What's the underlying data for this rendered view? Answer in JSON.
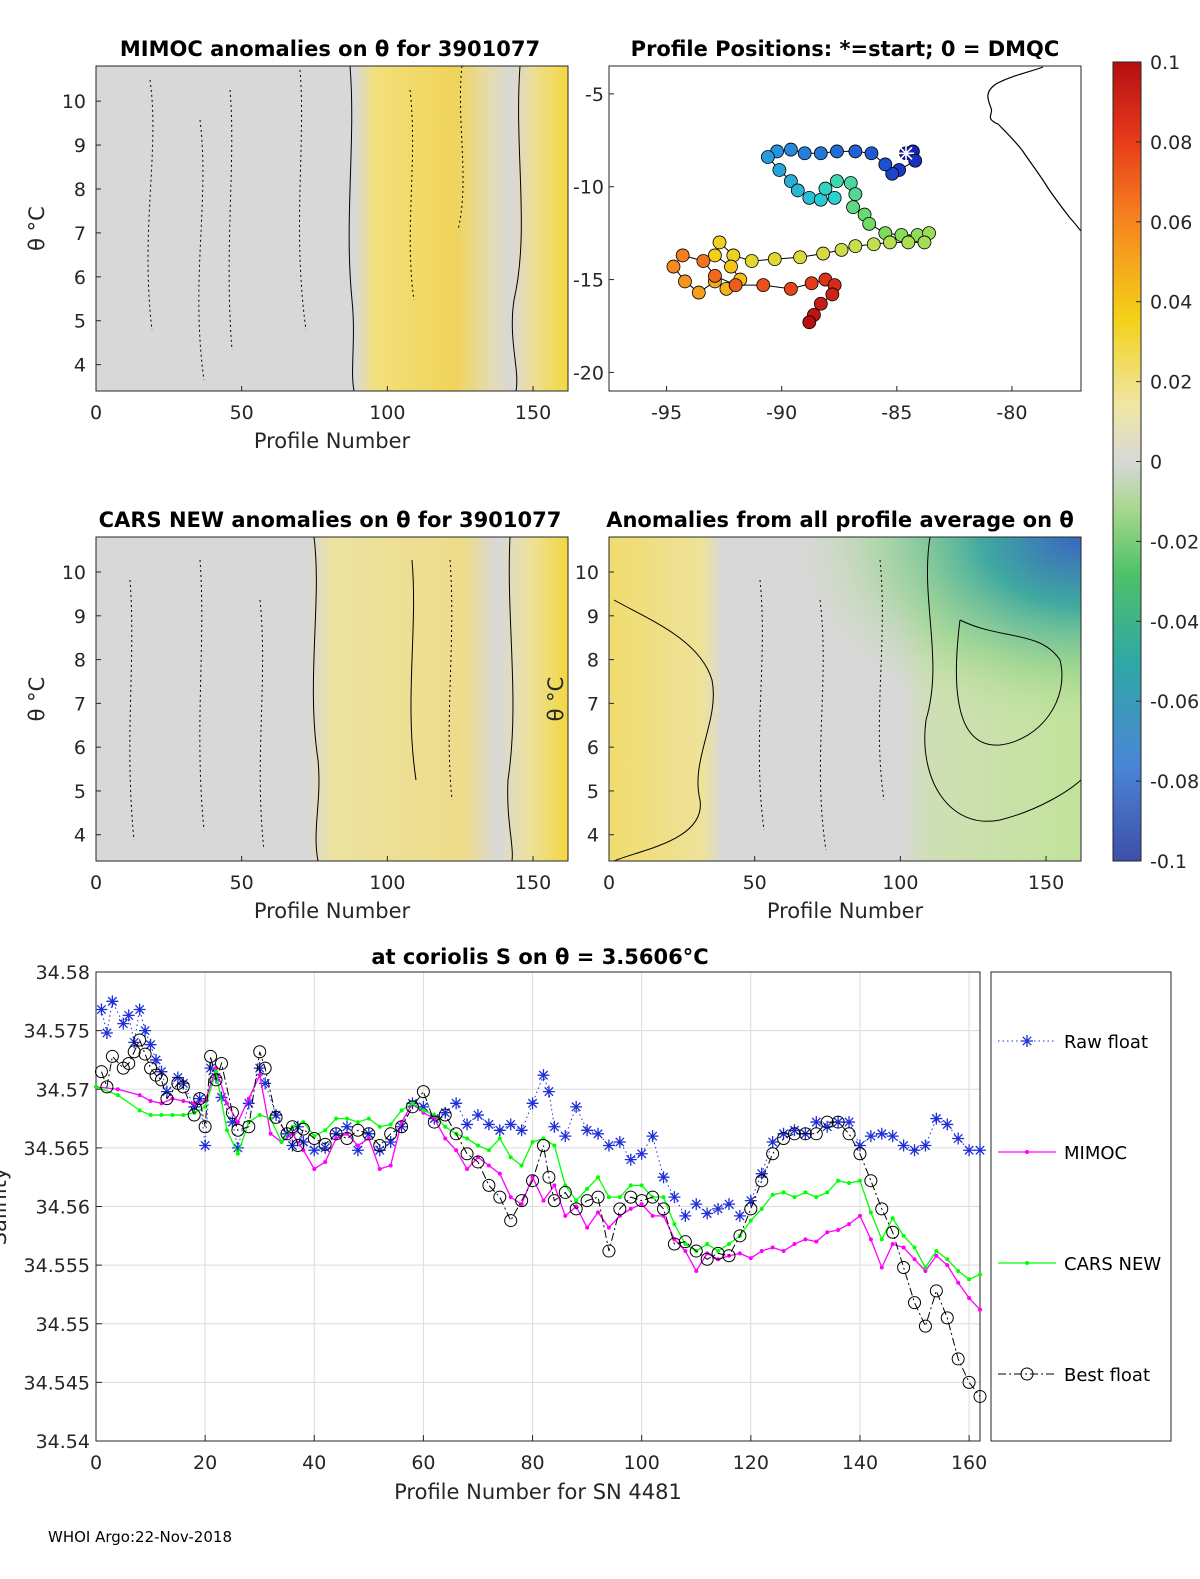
{
  "chart_data": [
    {
      "type": "heatmap",
      "title": "MIMOC anomalies on θ  for 3901077",
      "xlabel": "Profile Number",
      "ylabel": "θ °C",
      "xlim": [
        0,
        162
      ],
      "ylim": [
        3.4,
        10.8
      ],
      "xticks": [
        0,
        50,
        100,
        150
      ],
      "yticks": [
        4,
        5,
        6,
        7,
        8,
        9,
        10
      ]
    },
    {
      "type": "scatter",
      "title": "Profile Positions: *=start; 0 = DMQC",
      "xlim": [
        -97.5,
        -77
      ],
      "ylim": [
        -21,
        -3.5
      ],
      "xticks": [
        -95,
        -90,
        -85,
        -80
      ],
      "yticks": [
        -5,
        -10,
        -15,
        -20
      ],
      "track": [
        [
          -84.6,
          -8.2
        ],
        [
          -84.3,
          -8.1
        ],
        [
          -84.2,
          -8.6
        ],
        [
          -84.9,
          -9.1
        ],
        [
          -85.2,
          -9.3
        ],
        [
          -85.5,
          -8.8
        ],
        [
          -86.1,
          -8.2
        ],
        [
          -86.8,
          -8.1
        ],
        [
          -87.6,
          -8.1
        ],
        [
          -88.3,
          -8.2
        ],
        [
          -89.0,
          -8.2
        ],
        [
          -89.6,
          -8.0
        ],
        [
          -90.2,
          -8.1
        ],
        [
          -90.6,
          -8.4
        ],
        [
          -90.1,
          -9.1
        ],
        [
          -89.6,
          -9.7
        ],
        [
          -89.3,
          -10.2
        ],
        [
          -88.8,
          -10.6
        ],
        [
          -88.3,
          -10.7
        ],
        [
          -87.7,
          -10.6
        ],
        [
          -88.1,
          -10.1
        ],
        [
          -87.6,
          -9.7
        ],
        [
          -87.0,
          -9.8
        ],
        [
          -86.8,
          -10.4
        ],
        [
          -86.9,
          -11.1
        ],
        [
          -86.4,
          -11.5
        ],
        [
          -86.2,
          -12.0
        ],
        [
          -85.5,
          -12.5
        ],
        [
          -84.8,
          -12.6
        ],
        [
          -84.1,
          -12.6
        ],
        [
          -83.6,
          -12.5
        ],
        [
          -83.8,
          -13.0
        ],
        [
          -84.5,
          -13.0
        ],
        [
          -85.3,
          -13.0
        ],
        [
          -86.0,
          -13.1
        ],
        [
          -86.8,
          -13.2
        ],
        [
          -87.4,
          -13.4
        ],
        [
          -88.2,
          -13.6
        ],
        [
          -89.2,
          -13.8
        ],
        [
          -90.3,
          -13.9
        ],
        [
          -91.3,
          -14.0
        ],
        [
          -92.1,
          -13.7
        ],
        [
          -92.7,
          -13.0
        ],
        [
          -92.9,
          -13.7
        ],
        [
          -92.2,
          -14.3
        ],
        [
          -91.8,
          -15.0
        ],
        [
          -92.4,
          -15.5
        ],
        [
          -92.9,
          -15.1
        ],
        [
          -93.6,
          -15.7
        ],
        [
          -94.2,
          -15.1
        ],
        [
          -94.7,
          -14.3
        ],
        [
          -94.3,
          -13.7
        ],
        [
          -93.4,
          -14.0
        ],
        [
          -92.9,
          -14.8
        ],
        [
          -92.0,
          -15.3
        ],
        [
          -90.8,
          -15.3
        ],
        [
          -89.6,
          -15.5
        ],
        [
          -88.7,
          -15.2
        ],
        [
          -88.1,
          -15.0
        ],
        [
          -87.7,
          -15.3
        ],
        [
          -87.8,
          -15.8
        ],
        [
          -88.3,
          -16.3
        ],
        [
          -88.6,
          -16.9
        ],
        [
          -88.8,
          -17.3
        ]
      ],
      "colorbar": {
        "min": -0.1,
        "max": 0.1,
        "ticks": [
          "0.1",
          "0.08",
          "0.06",
          "0.04",
          "0.02",
          "0",
          "-0.02",
          "-0.04",
          "-0.06",
          "-0.08",
          "-0.1"
        ]
      }
    },
    {
      "type": "heatmap",
      "title": "CARS NEW anomalies on θ for 3901077",
      "xlabel": "Profile Number",
      "ylabel": "θ °C",
      "xlim": [
        0,
        162
      ],
      "ylim": [
        3.4,
        10.8
      ],
      "xticks": [
        0,
        50,
        100,
        150
      ],
      "yticks": [
        4,
        5,
        6,
        7,
        8,
        9,
        10
      ]
    },
    {
      "type": "heatmap",
      "title": "Anomalies from all profile average on θ",
      "xlabel": "Profile Number",
      "ylabel": "θ °C",
      "xlim": [
        0,
        162
      ],
      "ylim": [
        3.4,
        10.8
      ],
      "xticks": [
        0,
        50,
        100,
        150
      ],
      "yticks": [
        4,
        5,
        6,
        7,
        8,
        9,
        10
      ]
    },
    {
      "type": "line",
      "title": "at coriolis S on θ = 3.5606°C",
      "xlabel": "Profile Number for SN 4481",
      "ylabel": "Salinity",
      "xlim": [
        0,
        162
      ],
      "ylim": [
        34.54,
        34.58
      ],
      "xticks": [
        0,
        20,
        40,
        60,
        80,
        100,
        120,
        140,
        160
      ],
      "yticks": [
        "34.54",
        "34.545",
        "34.55",
        "34.555",
        "34.56",
        "34.565",
        "34.57",
        "34.575",
        "34.58"
      ],
      "grid": true,
      "legend_position": "outside-right",
      "series": [
        {
          "name": "Raw float",
          "color": "#1f2fd6",
          "marker": "*",
          "line": "dotted",
          "x": [
            1,
            2,
            3,
            5,
            6,
            7,
            8,
            9,
            10,
            11,
            12,
            13,
            15,
            16,
            18,
            19,
            20,
            21,
            22,
            23,
            25,
            26,
            28,
            30,
            31,
            33,
            35,
            36,
            37,
            38,
            40,
            42,
            44,
            46,
            48,
            50,
            52,
            54,
            56,
            58,
            60,
            62,
            64,
            66,
            68,
            70,
            72,
            74,
            76,
            78,
            80,
            82,
            83,
            84,
            86,
            88,
            90,
            92,
            94,
            96,
            98,
            100,
            102,
            104,
            106,
            108,
            110,
            112,
            114,
            116,
            118,
            120,
            122,
            124,
            126,
            128,
            130,
            132,
            134,
            136,
            138,
            140,
            142,
            144,
            146,
            148,
            150,
            152,
            154,
            156,
            158,
            160,
            162
          ],
          "y": [
            34.5768,
            34.5748,
            34.5775,
            34.5756,
            34.5763,
            34.574,
            34.5768,
            34.575,
            34.5738,
            34.5725,
            34.5715,
            34.5698,
            34.571,
            34.5705,
            34.5685,
            34.5692,
            34.5652,
            34.5718,
            34.571,
            34.5693,
            34.5672,
            34.565,
            34.5688,
            34.5718,
            34.5705,
            34.5678,
            34.5662,
            34.5652,
            34.5668,
            34.5655,
            34.5648,
            34.565,
            34.5662,
            34.5668,
            34.5648,
            34.5662,
            34.5648,
            34.5655,
            34.5668,
            34.5688,
            34.5685,
            34.5675,
            34.568,
            34.5688,
            34.567,
            34.5678,
            34.567,
            34.5665,
            34.567,
            34.5665,
            34.5688,
            34.5712,
            34.5698,
            34.5668,
            34.566,
            34.5685,
            34.5665,
            34.5662,
            34.5652,
            34.5655,
            34.564,
            34.5645,
            34.566,
            34.5625,
            34.5608,
            34.5592,
            34.5602,
            34.5594,
            34.5598,
            34.5602,
            34.5592,
            34.5605,
            34.5628,
            34.5655,
            34.5662,
            34.5665,
            34.5662,
            34.5672,
            34.5668,
            34.5672,
            34.5672,
            34.5652,
            34.566,
            34.5662,
            34.566,
            34.5652,
            34.5648,
            34.5652,
            34.5675,
            34.567,
            34.5658,
            34.5648,
            34.5648
          ]
        },
        {
          "name": "MIMOC",
          "color": "#ff00ff",
          "marker": ".",
          "line": "solid",
          "x": [
            0,
            4,
            8,
            10,
            12,
            14,
            16,
            18,
            20,
            22,
            24,
            26,
            28,
            30,
            32,
            34,
            36,
            38,
            40,
            42,
            44,
            46,
            48,
            50,
            52,
            54,
            56,
            58,
            60,
            62,
            64,
            66,
            68,
            70,
            72,
            74,
            76,
            78,
            80,
            82,
            84,
            86,
            88,
            90,
            92,
            94,
            96,
            98,
            100,
            102,
            104,
            106,
            108,
            110,
            112,
            114,
            116,
            118,
            120,
            122,
            124,
            126,
            128,
            130,
            132,
            134,
            136,
            138,
            140,
            142,
            144,
            146,
            148,
            150,
            152,
            154,
            156,
            158,
            160,
            162
          ],
          "y": [
            34.5702,
            34.57,
            34.5695,
            34.569,
            34.5688,
            34.5692,
            34.569,
            34.5688,
            34.569,
            34.5718,
            34.5688,
            34.5672,
            34.5692,
            34.5712,
            34.5662,
            34.5655,
            34.5662,
            34.5648,
            34.5632,
            34.5638,
            34.5658,
            34.5662,
            34.5652,
            34.5658,
            34.5632,
            34.5635,
            34.5672,
            34.5688,
            34.568,
            34.5675,
            34.5658,
            34.5648,
            34.5632,
            34.5642,
            34.5635,
            34.5628,
            34.5608,
            34.5602,
            34.5625,
            34.5605,
            34.5618,
            34.5592,
            34.56,
            34.5582,
            34.5595,
            34.5582,
            34.5592,
            34.5598,
            34.5602,
            34.5592,
            34.5592,
            34.5572,
            34.5562,
            34.5545,
            34.556,
            34.5555,
            34.5558,
            34.556,
            34.5556,
            34.5562,
            34.5565,
            34.5562,
            34.5568,
            34.5572,
            34.557,
            34.5578,
            34.558,
            34.5585,
            34.5592,
            34.5572,
            34.5548,
            34.5568,
            34.5565,
            34.5555,
            34.5545,
            34.5558,
            34.555,
            34.5535,
            34.5522,
            34.5512
          ]
        },
        {
          "name": "CARS NEW",
          "color": "#00ff00",
          "marker": ".",
          "line": "solid",
          "x": [
            0,
            4,
            8,
            10,
            12,
            14,
            16,
            18,
            20,
            22,
            24,
            26,
            28,
            30,
            32,
            34,
            36,
            38,
            40,
            42,
            44,
            46,
            48,
            50,
            52,
            54,
            56,
            58,
            60,
            62,
            64,
            66,
            68,
            70,
            72,
            74,
            76,
            78,
            80,
            82,
            84,
            86,
            88,
            90,
            92,
            94,
            96,
            98,
            100,
            102,
            104,
            106,
            108,
            110,
            112,
            114,
            116,
            118,
            120,
            122,
            124,
            126,
            128,
            130,
            132,
            134,
            136,
            138,
            140,
            142,
            144,
            146,
            148,
            150,
            152,
            154,
            156,
            158,
            160,
            162
          ],
          "y": [
            34.5702,
            34.5695,
            34.5682,
            34.5678,
            34.5678,
            34.5678,
            34.5678,
            34.568,
            34.5685,
            34.5715,
            34.5665,
            34.5645,
            34.5672,
            34.5678,
            34.5675,
            34.5655,
            34.5668,
            34.5672,
            34.566,
            34.5665,
            34.5675,
            34.5675,
            34.5672,
            34.5675,
            34.5668,
            34.567,
            34.5682,
            34.5688,
            34.5682,
            34.5678,
            34.5668,
            34.5662,
            34.5658,
            34.5652,
            34.5648,
            34.5658,
            34.5642,
            34.5635,
            34.5655,
            34.5658,
            34.5652,
            34.5618,
            34.5605,
            34.5615,
            34.5625,
            34.5608,
            34.5608,
            34.5618,
            34.5618,
            34.5608,
            34.5608,
            34.5585,
            34.5568,
            34.5562,
            34.5568,
            34.5562,
            34.5568,
            34.5575,
            34.5588,
            34.5598,
            34.561,
            34.5612,
            34.5608,
            34.5612,
            34.5608,
            34.5612,
            34.5622,
            34.562,
            34.5622,
            34.5595,
            34.5572,
            34.559,
            34.5575,
            34.5565,
            34.5548,
            34.5562,
            34.5555,
            34.5545,
            34.5538,
            34.5542
          ]
        },
        {
          "name": "Best float",
          "color": "#000000",
          "marker": "o",
          "line": "dashdot",
          "x": [
            1,
            2,
            3,
            5,
            6,
            7,
            8,
            9,
            10,
            11,
            12,
            13,
            15,
            16,
            18,
            19,
            20,
            21,
            22,
            23,
            25,
            26,
            28,
            30,
            31,
            33,
            35,
            36,
            37,
            38,
            40,
            42,
            44,
            46,
            48,
            50,
            52,
            54,
            56,
            58,
            60,
            62,
            64,
            66,
            68,
            70,
            72,
            74,
            76,
            78,
            80,
            82,
            83,
            84,
            86,
            88,
            90,
            92,
            94,
            96,
            98,
            100,
            102,
            104,
            106,
            108,
            110,
            112,
            114,
            116,
            118,
            120,
            122,
            124,
            126,
            128,
            130,
            132,
            134,
            136,
            138,
            140,
            142,
            144,
            146,
            148,
            150,
            152,
            154,
            156,
            158,
            160,
            162
          ],
          "y": [
            34.5715,
            34.5702,
            34.5728,
            34.5718,
            34.5722,
            34.5732,
            34.5742,
            34.573,
            34.5718,
            34.5712,
            34.5708,
            34.5692,
            34.5705,
            34.5702,
            34.5678,
            34.5692,
            34.5668,
            34.5728,
            34.5708,
            34.5722,
            34.568,
            34.5665,
            34.5668,
            34.5732,
            34.5718,
            34.5676,
            34.5662,
            34.5668,
            34.5652,
            34.5666,
            34.5658,
            34.5653,
            34.5662,
            34.5658,
            34.5665,
            34.5662,
            34.5652,
            34.5662,
            34.5668,
            34.5685,
            34.5698,
            34.5672,
            34.5678,
            34.5662,
            34.5645,
            34.5638,
            34.5618,
            34.5608,
            34.5588,
            34.5605,
            34.5622,
            34.5652,
            34.5625,
            34.5605,
            34.5612,
            34.5598,
            34.5605,
            34.5608,
            34.5562,
            34.5598,
            34.5608,
            34.5605,
            34.5608,
            34.5598,
            34.5568,
            34.557,
            34.5562,
            34.5555,
            34.556,
            34.5558,
            34.5575,
            34.5598,
            34.5622,
            34.5645,
            34.5658,
            34.5662,
            34.5662,
            34.5662,
            34.5672,
            34.5672,
            34.5662,
            34.5645,
            34.5622,
            34.5598,
            34.5578,
            34.5548,
            34.5518,
            34.5498,
            34.5528,
            34.5505,
            34.547,
            34.545,
            34.5438
          ]
        }
      ]
    }
  ],
  "footer": "WHOI Argo:22-Nov-2018"
}
